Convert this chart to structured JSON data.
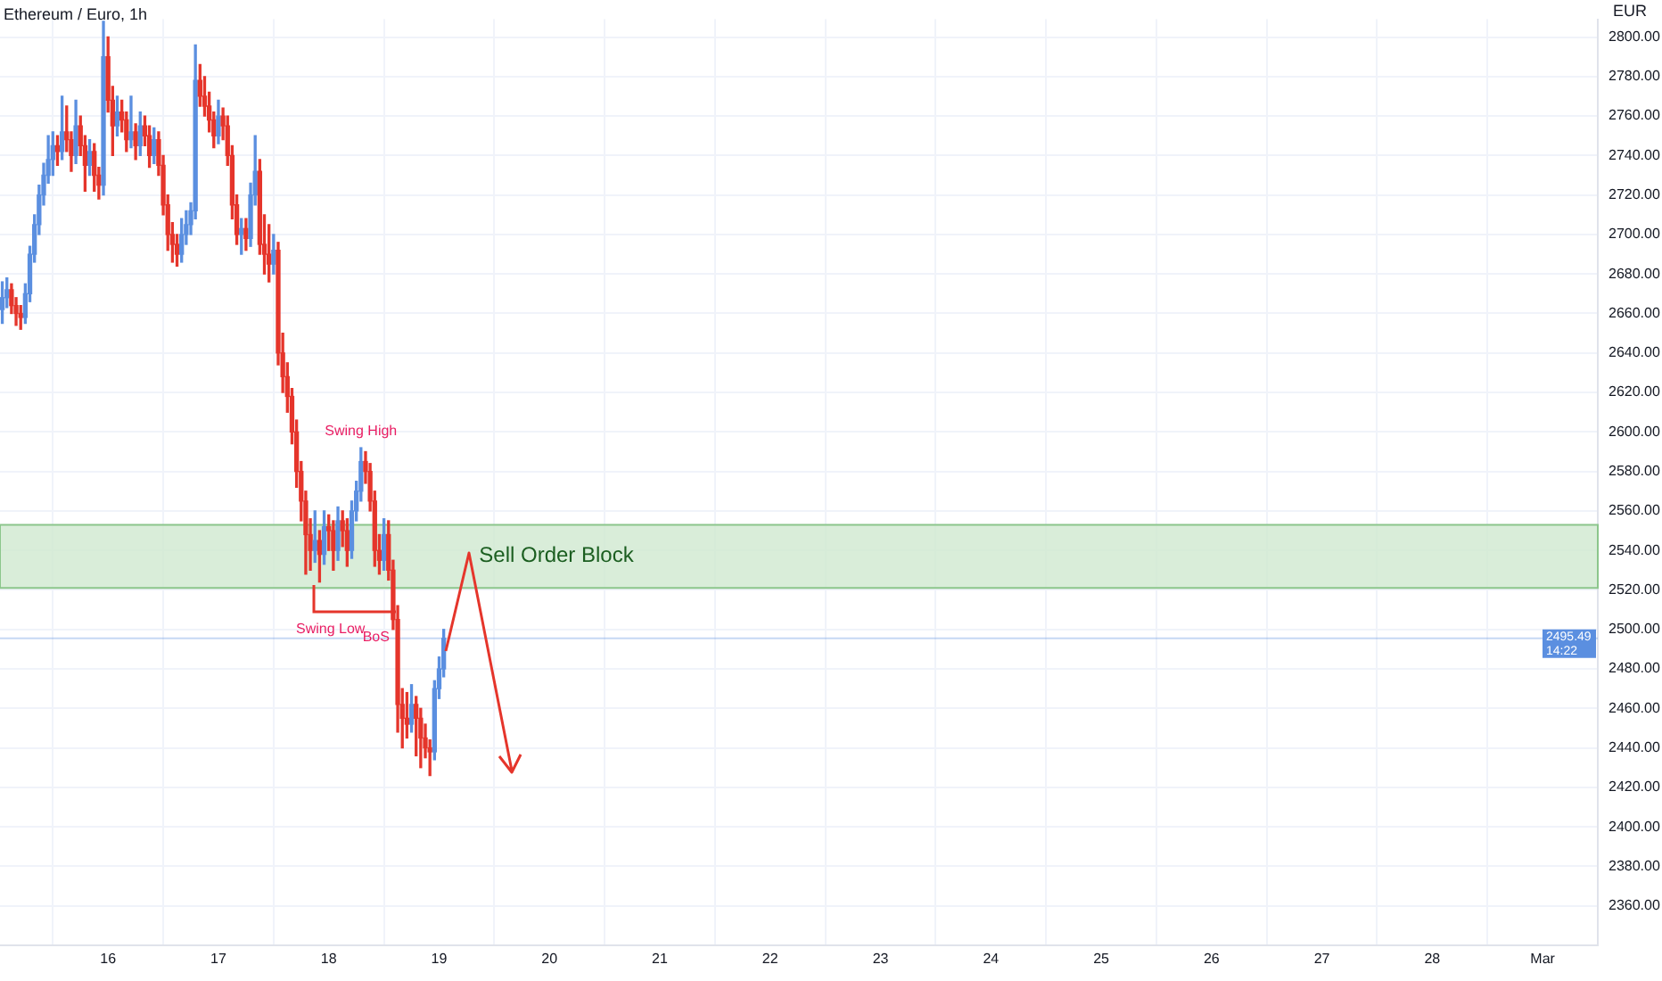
{
  "chart_data": {
    "type": "candlestick",
    "title": "Ethereum / Euro, 1h",
    "ylabel": "EUR",
    "x": [
      "--02-15T01:00",
      "--02-15T02:00",
      "--02-15T03:00",
      "--02-15T04:00",
      "--02-15T05:00",
      "--02-15T06:00",
      "--02-15T07:00",
      "--02-15T08:00",
      "--02-15T09:00",
      "--02-15T10:00",
      "--02-15T11:00",
      "--02-15T12:00",
      "--02-15T13:00",
      "--02-15T14:00",
      "--02-15T15:00",
      "--02-15T16:00",
      "--02-15T17:00",
      "--02-15T18:00",
      "--02-15T19:00",
      "--02-15T20:00",
      "--02-15T21:00",
      "--02-15T22:00",
      "--02-15T23:00",
      "--02-16T00:00",
      "--02-16T01:00",
      "--02-16T02:00",
      "--02-16T03:00",
      "--02-16T04:00",
      "--02-16T05:00",
      "--02-16T06:00",
      "--02-16T07:00",
      "--02-16T08:00",
      "--02-16T09:00",
      "--02-16T10:00",
      "--02-16T11:00",
      "--02-16T12:00",
      "--02-16T13:00",
      "--02-16T14:00",
      "--02-16T15:00",
      "--02-16T16:00",
      "--02-16T17:00",
      "--02-16T18:00",
      "--02-16T19:00",
      "--02-16T20:00",
      "--02-16T21:00",
      "--02-16T22:00",
      "--02-16T23:00",
      "--02-17T00:00",
      "--02-17T01:00",
      "--02-17T02:00",
      "--02-17T03:00",
      "--02-17T04:00",
      "--02-17T05:00",
      "--02-17T06:00",
      "--02-17T07:00",
      "--02-17T08:00",
      "--02-17T09:00",
      "--02-17T10:00",
      "--02-17T11:00",
      "--02-17T12:00",
      "--02-17T13:00",
      "--02-17T14:00",
      "--02-17T15:00",
      "--02-17T16:00",
      "--02-17T17:00",
      "--02-17T18:00",
      "--02-17T19:00",
      "--02-17T20:00",
      "--02-17T21:00",
      "--02-17T22:00",
      "--02-17T23:00",
      "--02-18T00:00",
      "--02-18T01:00",
      "--02-18T02:00",
      "--02-18T03:00",
      "--02-18T04:00",
      "--02-18T05:00",
      "--02-18T06:00",
      "--02-18T07:00",
      "--02-18T08:00",
      "--02-18T09:00",
      "--02-18T10:00",
      "--02-18T11:00",
      "--02-18T12:00",
      "--02-18T13:00",
      "--02-18T14:00",
      "--02-18T15:00",
      "--02-18T16:00",
      "--02-18T17:00",
      "--02-18T18:00",
      "--02-18T19:00",
      "--02-18T20:00",
      "--02-18T21:00",
      "--02-18T22:00",
      "--02-18T23:00",
      "--02-19T00:00",
      "--02-19T01:00"
    ],
    "ohlc": [
      [
        2662,
        2676,
        2655,
        2668
      ],
      [
        2668,
        2678,
        2663,
        2672
      ],
      [
        2672,
        2675,
        2660,
        2664
      ],
      [
        2664,
        2668,
        2654,
        2660
      ],
      [
        2660,
        2664,
        2652,
        2658
      ],
      [
        2658,
        2675,
        2655,
        2670
      ],
      [
        2670,
        2694,
        2666,
        2690
      ],
      [
        2690,
        2710,
        2686,
        2705
      ],
      [
        2705,
        2725,
        2700,
        2720
      ],
      [
        2720,
        2736,
        2715,
        2730
      ],
      [
        2730,
        2750,
        2726,
        2738
      ],
      [
        2738,
        2752,
        2730,
        2745
      ],
      [
        2745,
        2750,
        2735,
        2742
      ],
      [
        2742,
        2770,
        2738,
        2752
      ],
      [
        2752,
        2765,
        2742,
        2748
      ],
      [
        2748,
        2752,
        2732,
        2740
      ],
      [
        2740,
        2768,
        2736,
        2755
      ],
      [
        2755,
        2760,
        2740,
        2745
      ],
      [
        2745,
        2750,
        2722,
        2735
      ],
      [
        2735,
        2748,
        2730,
        2742
      ],
      [
        2742,
        2746,
        2722,
        2730
      ],
      [
        2730,
        2734,
        2718,
        2725
      ],
      [
        2725,
        2808,
        2720,
        2790
      ],
      [
        2790,
        2800,
        2762,
        2768
      ],
      [
        2768,
        2775,
        2740,
        2755
      ],
      [
        2755,
        2770,
        2750,
        2762
      ],
      [
        2762,
        2768,
        2752,
        2758
      ],
      [
        2758,
        2762,
        2742,
        2748
      ],
      [
        2748,
        2770,
        2744,
        2752
      ],
      [
        2752,
        2756,
        2738,
        2745
      ],
      [
        2745,
        2762,
        2740,
        2755
      ],
      [
        2755,
        2760,
        2745,
        2750
      ],
      [
        2750,
        2755,
        2734,
        2740
      ],
      [
        2740,
        2754,
        2736,
        2748
      ],
      [
        2748,
        2752,
        2730,
        2735
      ],
      [
        2735,
        2740,
        2710,
        2715
      ],
      [
        2715,
        2720,
        2692,
        2700
      ],
      [
        2700,
        2706,
        2686,
        2695
      ],
      [
        2695,
        2700,
        2684,
        2690
      ],
      [
        2690,
        2708,
        2686,
        2700
      ],
      [
        2700,
        2712,
        2695,
        2705
      ],
      [
        2705,
        2716,
        2700,
        2712
      ],
      [
        2712,
        2796,
        2708,
        2778
      ],
      [
        2778,
        2786,
        2765,
        2770
      ],
      [
        2770,
        2780,
        2760,
        2765
      ],
      [
        2765,
        2772,
        2752,
        2758
      ],
      [
        2758,
        2762,
        2744,
        2750
      ],
      [
        2750,
        2768,
        2746,
        2760
      ],
      [
        2760,
        2764,
        2748,
        2755
      ],
      [
        2755,
        2760,
        2735,
        2740
      ],
      [
        2740,
        2745,
        2708,
        2715
      ],
      [
        2715,
        2720,
        2695,
        2700
      ],
      [
        2700,
        2708,
        2690,
        2703
      ],
      [
        2703,
        2708,
        2692,
        2698
      ],
      [
        2698,
        2726,
        2694,
        2720
      ],
      [
        2720,
        2750,
        2715,
        2732
      ],
      [
        2732,
        2738,
        2690,
        2695
      ],
      [
        2695,
        2710,
        2680,
        2690
      ],
      [
        2690,
        2705,
        2676,
        2685
      ],
      [
        2685,
        2700,
        2680,
        2692
      ],
      [
        2692,
        2696,
        2634,
        2640
      ],
      [
        2640,
        2650,
        2620,
        2628
      ],
      [
        2628,
        2635,
        2610,
        2618
      ],
      [
        2618,
        2622,
        2594,
        2600
      ],
      [
        2600,
        2606,
        2572,
        2580
      ],
      [
        2580,
        2585,
        2555,
        2565
      ],
      [
        2565,
        2570,
        2528,
        2548
      ],
      [
        2548,
        2556,
        2530,
        2540
      ],
      [
        2540,
        2560,
        2534,
        2545
      ],
      [
        2545,
        2550,
        2524,
        2538
      ],
      [
        2538,
        2560,
        2533,
        2552
      ],
      [
        2552,
        2558,
        2540,
        2550
      ],
      [
        2550,
        2555,
        2530,
        2540
      ],
      [
        2540,
        2562,
        2535,
        2555
      ],
      [
        2555,
        2560,
        2542,
        2550
      ],
      [
        2550,
        2556,
        2532,
        2540
      ],
      [
        2540,
        2565,
        2536,
        2560
      ],
      [
        2560,
        2575,
        2555,
        2570
      ],
      [
        2570,
        2592,
        2565,
        2585
      ],
      [
        2585,
        2590,
        2574,
        2580
      ],
      [
        2580,
        2584,
        2560,
        2565
      ],
      [
        2565,
        2570,
        2532,
        2540
      ],
      [
        2540,
        2548,
        2528,
        2535
      ],
      [
        2535,
        2556,
        2530,
        2548
      ],
      [
        2548,
        2555,
        2525,
        2530
      ],
      [
        2530,
        2535,
        2500,
        2505
      ],
      [
        2505,
        2512,
        2448,
        2462
      ],
      [
        2462,
        2470,
        2440,
        2455
      ],
      [
        2455,
        2468,
        2445,
        2452
      ],
      [
        2452,
        2472,
        2448,
        2462
      ],
      [
        2462,
        2466,
        2436,
        2455
      ],
      [
        2455,
        2460,
        2430,
        2445
      ],
      [
        2445,
        2452,
        2435,
        2440
      ],
      [
        2440,
        2444,
        2426,
        2438
      ],
      [
        2438,
        2474,
        2434,
        2470
      ],
      [
        2470,
        2486,
        2465,
        2480
      ],
      [
        2480,
        2500,
        2476,
        2495.49
      ]
    ],
    "xlim": [
      "--02-15T00:30",
      "--03-01T12:00"
    ],
    "xticks": [
      {
        "value": "--02-16",
        "label": "16"
      },
      {
        "value": "--02-17",
        "label": "17"
      },
      {
        "value": "--02-18",
        "label": "18"
      },
      {
        "value": "--02-19",
        "label": "19"
      },
      {
        "value": "--02-20",
        "label": "20"
      },
      {
        "value": "--02-21",
        "label": "21"
      },
      {
        "value": "--02-22",
        "label": "22"
      },
      {
        "value": "--02-23",
        "label": "23"
      },
      {
        "value": "--02-24",
        "label": "24"
      },
      {
        "value": "--02-25",
        "label": "25"
      },
      {
        "value": "--02-26",
        "label": "26"
      },
      {
        "value": "--02-27",
        "label": "27"
      },
      {
        "value": "--02-28",
        "label": "28"
      },
      {
        "value": "--03-01",
        "label": "Mar"
      }
    ],
    "ylim": [
      2340,
      2809
    ],
    "yticks": [
      {
        "value": 2360,
        "label": "2360.00"
      },
      {
        "value": 2380,
        "label": "2380.00"
      },
      {
        "value": 2400,
        "label": "2400.00"
      },
      {
        "value": 2420,
        "label": "2420.00"
      },
      {
        "value": 2440,
        "label": "2440.00"
      },
      {
        "value": 2460,
        "label": "2460.00"
      },
      {
        "value": 2480,
        "label": "2480.00"
      },
      {
        "value": 2500,
        "label": "2500.00"
      },
      {
        "value": 2520,
        "label": "2520.00"
      },
      {
        "value": 2540,
        "label": "2540.00"
      },
      {
        "value": 2560,
        "label": "2560.00"
      },
      {
        "value": 2580,
        "label": "2580.00"
      },
      {
        "value": 2600,
        "label": "2600.00"
      },
      {
        "value": 2620,
        "label": "2620.00"
      },
      {
        "value": 2640,
        "label": "2640.00"
      },
      {
        "value": 2660,
        "label": "2660.00"
      },
      {
        "value": 2680,
        "label": "2680.00"
      },
      {
        "value": 2700,
        "label": "2700.00"
      },
      {
        "value": 2720,
        "label": "2720.00"
      },
      {
        "value": 2740,
        "label": "2740.00"
      },
      {
        "value": 2760,
        "label": "2760.00"
      },
      {
        "value": 2780,
        "label": "2780.00"
      },
      {
        "value": 2800,
        "label": "2800.00"
      }
    ],
    "grid": true,
    "bands": [
      {
        "axis": "y",
        "from": 2521,
        "to": 2553,
        "label": "Sell Order Block",
        "color": "#cfe8cf"
      }
    ],
    "ref_lines": [
      {
        "axis": "y",
        "value": 2495.49,
        "label": "2495.49 14:22",
        "color": "#5b8fe0"
      }
    ],
    "annotations": [
      {
        "text": "Swing High",
        "x": "--02-18T07:00",
        "y": 2592
      },
      "Swing Low",
      {
        "text": "BoS",
        "x": "--02-18T14:00",
        "y": 2505
      }
    ]
  }
}
